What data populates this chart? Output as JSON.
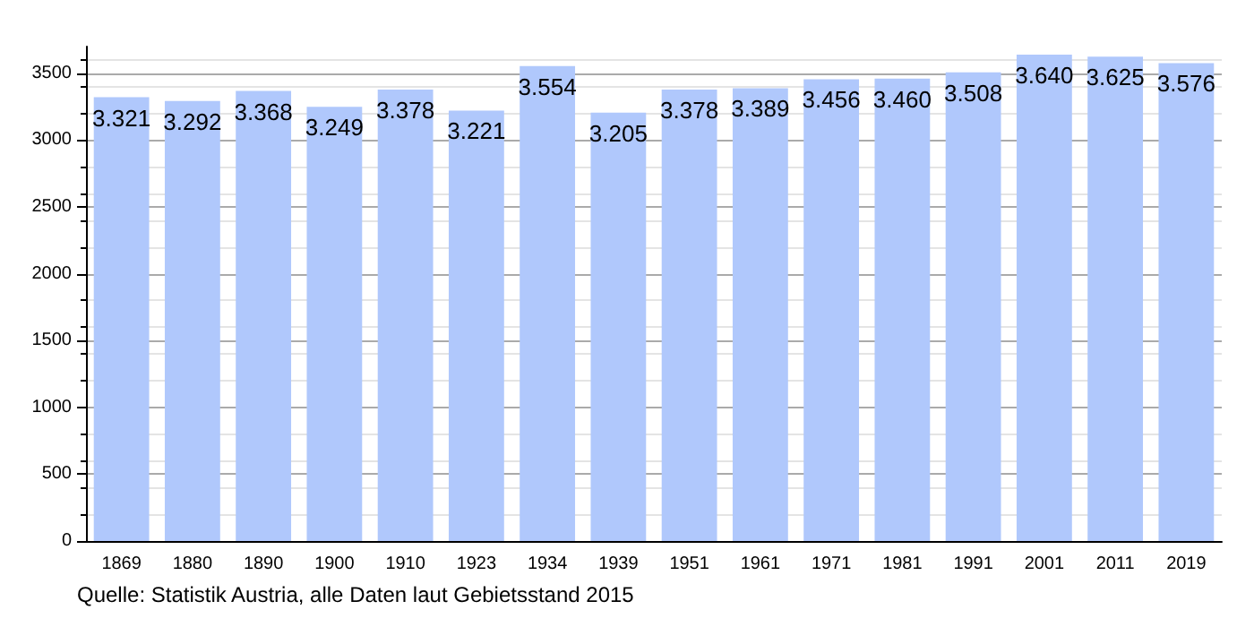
{
  "chart_data": {
    "type": "bar",
    "categories": [
      "1869",
      "1880",
      "1890",
      "1900",
      "1910",
      "1923",
      "1934",
      "1939",
      "1951",
      "1961",
      "1971",
      "1981",
      "1991",
      "2001",
      "2011",
      "2019"
    ],
    "values": [
      3321,
      3292,
      3368,
      3249,
      3378,
      3221,
      3554,
      3205,
      3378,
      3389,
      3456,
      3460,
      3508,
      3640,
      3625,
      3576
    ],
    "value_labels": [
      "3.321",
      "3.292",
      "3.368",
      "3.249",
      "3.378",
      "3.221",
      "3.554",
      "3.205",
      "3.378",
      "3.389",
      "3.456",
      "3.460",
      "3.508",
      "3.640",
      "3.625",
      "3.576"
    ],
    "color": "#b0c8fc",
    "ylim": [
      0,
      3700
    ],
    "yticks": [
      0,
      500,
      1000,
      1500,
      2000,
      2500,
      3000,
      3500
    ],
    "grid": "y",
    "annotations": [
      "Quelle: Statistik Austria, alle Daten laut Gebietsstand 2015"
    ]
  }
}
